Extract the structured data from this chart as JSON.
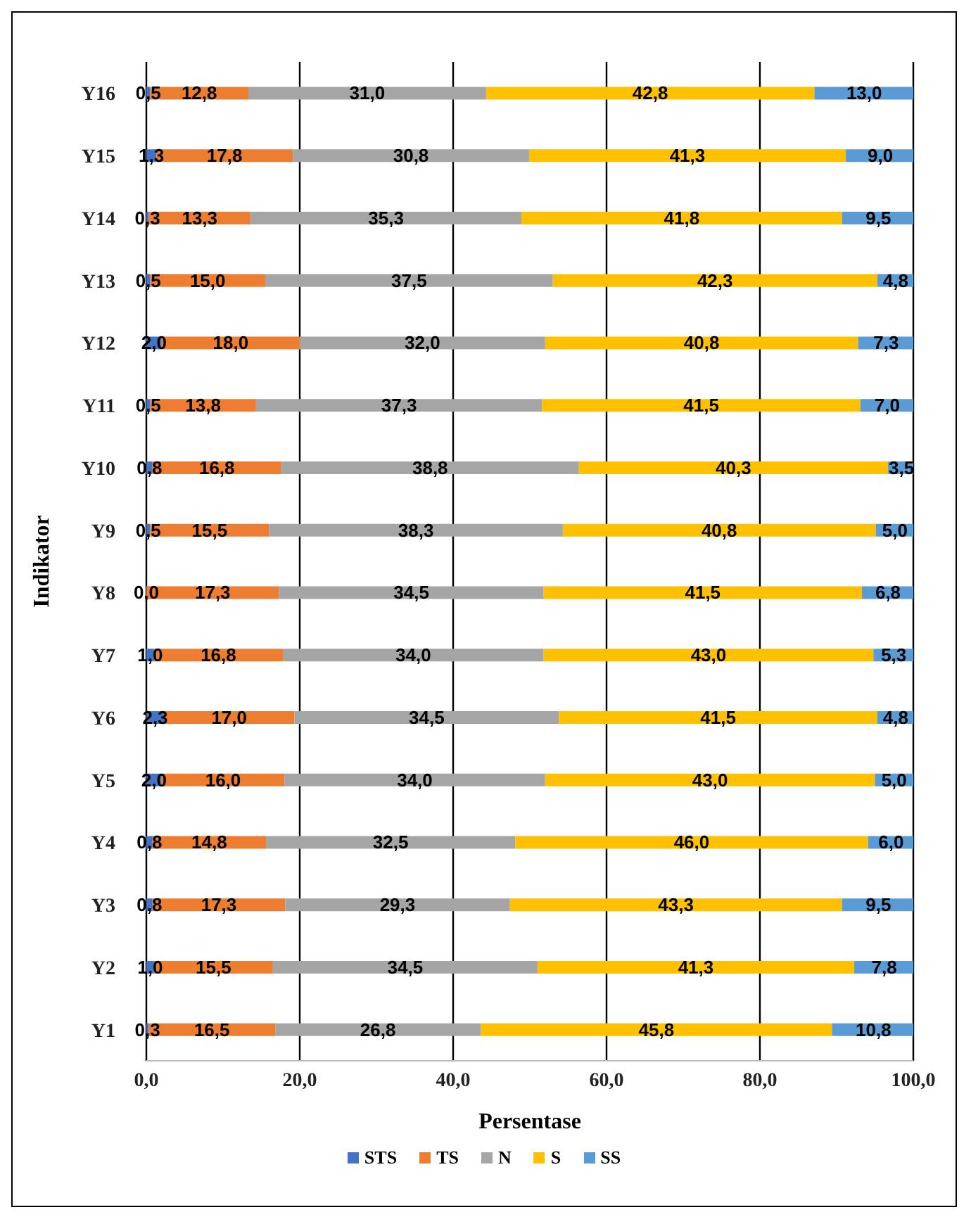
{
  "chart_data": {
    "type": "bar",
    "orientation": "horizontal",
    "stacked": true,
    "xlabel": "Persentase",
    "ylabel": "Indikator",
    "categories": [
      "Y16",
      "Y15",
      "Y14",
      "Y13",
      "Y12",
      "Y11",
      "Y10",
      "Y9",
      "Y8",
      "Y7",
      "Y6",
      "Y5",
      "Y4",
      "Y3",
      "Y2",
      "Y1"
    ],
    "series": [
      {
        "name": "STS",
        "color": "#4472c4",
        "values": [
          0.5,
          1.3,
          0.3,
          0.5,
          2.0,
          0.5,
          0.8,
          0.5,
          0.0,
          1.0,
          2.3,
          2.0,
          0.8,
          0.8,
          1.0,
          0.3
        ],
        "value_labels": [
          "0,5",
          "1,3",
          "0,3",
          "0,5",
          "2,0",
          "0,5",
          "0,8",
          "0,5",
          "0,0",
          "1,0",
          "2,3",
          "2,0",
          "0,8",
          "0,8",
          "1,0",
          "0,3"
        ]
      },
      {
        "name": "TS",
        "color": "#ed7d31",
        "values": [
          12.8,
          17.8,
          13.3,
          15.0,
          18.0,
          13.8,
          16.8,
          15.5,
          17.3,
          16.8,
          17.0,
          16.0,
          14.8,
          17.3,
          15.5,
          16.5
        ],
        "value_labels": [
          "12,8",
          "17,8",
          "13,3",
          "15,0",
          "18,0",
          "13,8",
          "16,8",
          "15,5",
          "17,3",
          "16,8",
          "17,0",
          "16,0",
          "14,8",
          "17,3",
          "15,5",
          "16,5"
        ]
      },
      {
        "name": "N",
        "color": "#a5a5a5",
        "values": [
          31.0,
          30.8,
          35.3,
          37.5,
          32.0,
          37.3,
          38.8,
          38.3,
          34.5,
          34.0,
          34.5,
          34.0,
          32.5,
          29.3,
          34.5,
          26.8
        ],
        "value_labels": [
          "31,0",
          "30,8",
          "35,3",
          "37,5",
          "32,0",
          "37,3",
          "38,8",
          "38,3",
          "34,5",
          "34,0",
          "34,5",
          "34,0",
          "32,5",
          "29,3",
          "34,5",
          "26,8"
        ]
      },
      {
        "name": "S",
        "color": "#ffc000",
        "values": [
          42.8,
          41.3,
          41.8,
          42.3,
          40.8,
          41.5,
          40.3,
          40.8,
          41.5,
          43.0,
          41.5,
          43.0,
          46.0,
          43.3,
          41.3,
          45.8
        ],
        "value_labels": [
          "42,8",
          "41,3",
          "41,8",
          "42,3",
          "40,8",
          "41,5",
          "40,3",
          "40,8",
          "41,5",
          "43,0",
          "41,5",
          "43,0",
          "46,0",
          "43,3",
          "41,3",
          "45,8"
        ]
      },
      {
        "name": "SS",
        "color": "#5b9bd5",
        "values": [
          13.0,
          9.0,
          9.5,
          4.8,
          7.3,
          7.0,
          3.5,
          5.0,
          6.8,
          5.3,
          4.8,
          5.0,
          6.0,
          9.5,
          7.8,
          10.8
        ],
        "value_labels": [
          "13,0",
          "9,0",
          "9,5",
          "4,8",
          "7,3",
          "7,0",
          "3,5",
          "5,0",
          "6,8",
          "5,3",
          "4,8",
          "5,0",
          "6,0",
          "9,5",
          "7,8",
          "10,8"
        ]
      }
    ],
    "xlim": [
      0,
      100
    ],
    "xticks": [
      {
        "value": 0,
        "label": "0,0"
      },
      {
        "value": 20,
        "label": "20,0"
      },
      {
        "value": 40,
        "label": "40,0"
      },
      {
        "value": 60,
        "label": "60,0"
      },
      {
        "value": 80,
        "label": "80,0"
      },
      {
        "value": 100,
        "label": "100,0"
      }
    ],
    "grid": "x",
    "legend": "bottom"
  }
}
